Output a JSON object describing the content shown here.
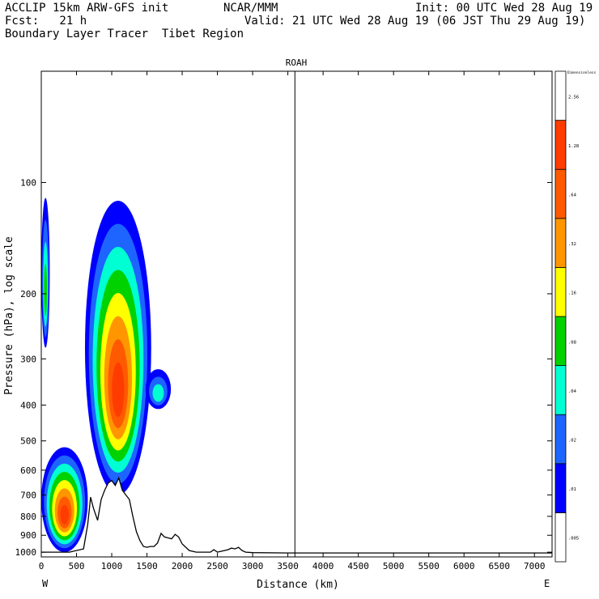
{
  "header": {
    "line1_left": "ACCLIP 15km ARW-GFS init",
    "line1_center": "NCAR/MMM",
    "line1_right": "Init: 00 UTC Wed 28 Aug 19",
    "line2_left": "Fcst:   21 h",
    "line2_right": "Valid: 21 UTC Wed 28 Aug 19 (06 JST Thu 29 Aug 19)",
    "line3_left": "Boundary Layer Tracer  Tibet Region"
  },
  "chart_data": {
    "type": "heatmap",
    "title": "ROAH",
    "xlabel": "Distance (km)",
    "ylabel": "Pressure (hPa), log scale",
    "y_scale": "log",
    "xlim": [
      0,
      7250
    ],
    "ylim": [
      1030,
      50
    ],
    "x_ticks": [
      0,
      500,
      1000,
      1500,
      2000,
      2500,
      3000,
      3500,
      4000,
      4500,
      5000,
      5500,
      6000,
      6500,
      7000
    ],
    "y_ticks": [
      100,
      200,
      300,
      400,
      500,
      600,
      700,
      800,
      900,
      1000
    ],
    "x_end_labels": {
      "left": "W",
      "right": "E"
    },
    "marker_x": 3600,
    "colorbar": {
      "title": "Dimensionless",
      "labels": [
        ".005",
        ".01",
        ".02",
        ".04",
        ".08",
        ".16",
        ".32",
        ".64",
        "1.28",
        "2.56"
      ],
      "colors": [
        "#ffffff",
        "#0000ff",
        "#1e64ff",
        "#00ffd2",
        "#00d200",
        "#ffff00",
        "#ff9600",
        "#ff5a00",
        "#ff3c00",
        "#ffffff"
      ]
    },
    "terrain_profile": {
      "distance_km": [
        0,
        400,
        600,
        660,
        700,
        740,
        800,
        850,
        900,
        950,
        1000,
        1050,
        1100,
        1150,
        1200,
        1250,
        1300,
        1350,
        1400,
        1450,
        1500,
        1550,
        1600,
        1650,
        1700,
        1750,
        1800,
        1850,
        1900,
        1950,
        2000,
        2100,
        2200,
        2400,
        2450,
        2500,
        2550,
        2600,
        2650,
        2700,
        2750,
        2800,
        2850,
        2900,
        3000,
        3500,
        4000,
        5000,
        6000,
        7000,
        7250
      ],
      "pressure_hpa": [
        1000,
        1000,
        980,
        840,
        710,
        760,
        820,
        720,
        680,
        650,
        640,
        660,
        630,
        680,
        700,
        720,
        800,
        880,
        930,
        965,
        970,
        965,
        965,
        945,
        890,
        910,
        915,
        920,
        895,
        910,
        950,
        990,
        1000,
        1000,
        985,
        1000,
        995,
        990,
        985,
        975,
        980,
        970,
        990,
        1000,
        1003,
        1005,
        1005,
        1005,
        1005,
        1005,
        1005
      ]
    },
    "tracer_regions": [
      {
        "name": "western column",
        "x_range_km": [
          0,
          120
        ],
        "p_range_hpa": [
          110,
          280
        ],
        "max_level": ".08"
      },
      {
        "name": "boundary layer",
        "x_range_km": [
          0,
          660
        ],
        "p_range_hpa": [
          520,
          1000
        ],
        "max_level": "1.28"
      },
      {
        "name": "convective plume",
        "x_range_km": [
          620,
          1560
        ],
        "p_range_hpa": [
          112,
          700
        ],
        "max_level": "1.28"
      },
      {
        "name": "detached blob",
        "x_range_km": [
          1480,
          1840
        ],
        "p_range_hpa": [
          320,
          410
        ],
        "max_level": ".04"
      }
    ]
  }
}
